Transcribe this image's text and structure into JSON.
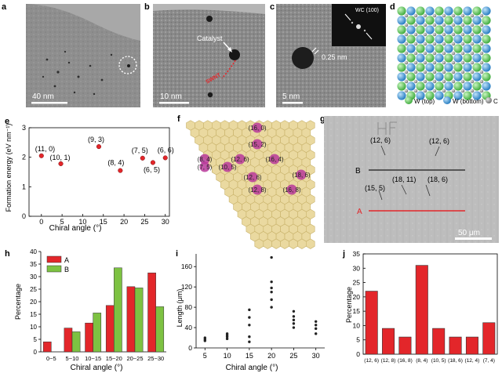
{
  "panel_letters": {
    "a": "a",
    "b": "b",
    "c": "c",
    "d": "d",
    "e": "e",
    "f": "f",
    "g": "g",
    "h": "h",
    "i": "i",
    "j": "j"
  },
  "panel_a": {
    "scale_label": "40 nm"
  },
  "panel_b": {
    "catalyst_label": "Catalyst",
    "swnt_label": "SWNT",
    "scale_label": "10 nm"
  },
  "panel_c": {
    "inset_label": "WC (100)",
    "spacing_label": "0.25 nm",
    "scale_label": "5 nm"
  },
  "panel_d": {
    "legend": [
      {
        "label": "W (top)",
        "color": "#4cc24c"
      },
      {
        "label": "W (bottom)",
        "color": "#2f8fd1"
      },
      {
        "label": "C",
        "color": "#8a8a8a"
      }
    ]
  },
  "panel_f": {
    "labels": [
      "(16, 0)",
      "(15, 2)",
      "(8, 4)",
      "(7, 5)",
      "(12, 6)",
      "(10, 5)",
      "(16, 4)",
      "(12, 6)",
      "(18, 6)",
      "(12, 8)",
      "(16, 8)"
    ],
    "hex_color": "#ead9a0",
    "highlight_color": "#b8389a"
  },
  "panel_g": {
    "labels": [
      "(12, 6)",
      "(12, 6)",
      "(18, 11)",
      "(18, 6)",
      "(15, 5)"
    ],
    "line_a_label": "A",
    "line_b_label": "B",
    "scale_label": "50 μm",
    "line_a_color": "#e3262a"
  },
  "chart_data": [
    {
      "panel": "e",
      "type": "scatter",
      "xlabel": "Chiral angle (°)",
      "ylabel": "Formation energy (eV nm⁻¹)",
      "xlim": [
        -3,
        31
      ],
      "ylim": [
        0,
        3
      ],
      "xticks": [
        0,
        5,
        10,
        15,
        20,
        25,
        30
      ],
      "yticks": [
        0,
        1,
        2,
        3
      ],
      "grid": false,
      "marker_color": "#e3262a",
      "points": [
        {
          "label": "(11, 0)",
          "x": 0,
          "y": 2.05
        },
        {
          "label": "(10, 1)",
          "x": 4.7,
          "y": 1.78
        },
        {
          "label": "(9, 3)",
          "x": 13.9,
          "y": 2.36
        },
        {
          "label": "(8, 4)",
          "x": 19.1,
          "y": 1.55
        },
        {
          "label": "(7, 5)",
          "x": 24.5,
          "y": 1.97
        },
        {
          "label": "(6, 5)",
          "x": 27,
          "y": 1.82
        },
        {
          "label": "(6, 6)",
          "x": 30,
          "y": 1.98
        }
      ]
    },
    {
      "panel": "h",
      "type": "bar",
      "xlabel": "Chiral angle (°)",
      "ylabel": "Percentage",
      "ylim": [
        0,
        40
      ],
      "yticks": [
        0,
        5,
        10,
        15,
        20,
        25,
        30,
        35,
        40
      ],
      "legend_position": "top-left",
      "categories": [
        "0~5",
        "5~10",
        "10~15",
        "15~20",
        "20~25",
        "25~30"
      ],
      "series": [
        {
          "name": "A",
          "color": "#e3262a",
          "values": [
            4,
            9.5,
            11.5,
            18.5,
            26,
            31.5
          ]
        },
        {
          "name": "B",
          "color": "#7dc242",
          "values": [
            0,
            8,
            15.5,
            33.5,
            25.5,
            18
          ]
        }
      ]
    },
    {
      "panel": "i",
      "type": "scatter",
      "xlabel": "Chiral angle (°)",
      "ylabel": "Length (μm)",
      "xlim": [
        3,
        32
      ],
      "ylim": [
        0,
        185
      ],
      "xticks": [
        5,
        10,
        15,
        20,
        25,
        30
      ],
      "yticks": [
        0,
        40,
        80,
        120,
        160
      ],
      "marker_color": "#222222",
      "points": [
        {
          "x": 5,
          "y": 14
        },
        {
          "x": 5,
          "y": 17
        },
        {
          "x": 5,
          "y": 20
        },
        {
          "x": 10,
          "y": 18
        },
        {
          "x": 10,
          "y": 22
        },
        {
          "x": 10,
          "y": 25
        },
        {
          "x": 10,
          "y": 28
        },
        {
          "x": 15,
          "y": 12
        },
        {
          "x": 15,
          "y": 22
        },
        {
          "x": 15,
          "y": 45
        },
        {
          "x": 15,
          "y": 60
        },
        {
          "x": 15,
          "y": 75
        },
        {
          "x": 20,
          "y": 80
        },
        {
          "x": 20,
          "y": 95
        },
        {
          "x": 20,
          "y": 110
        },
        {
          "x": 20,
          "y": 118
        },
        {
          "x": 20,
          "y": 130
        },
        {
          "x": 20,
          "y": 178
        },
        {
          "x": 25,
          "y": 40
        },
        {
          "x": 25,
          "y": 48
        },
        {
          "x": 25,
          "y": 55
        },
        {
          "x": 25,
          "y": 62
        },
        {
          "x": 25,
          "y": 72
        },
        {
          "x": 30,
          "y": 28
        },
        {
          "x": 30,
          "y": 38
        },
        {
          "x": 30,
          "y": 45
        },
        {
          "x": 30,
          "y": 52
        }
      ]
    },
    {
      "panel": "j",
      "type": "bar",
      "xlabel": "",
      "ylabel": "Percentage",
      "ylim": [
        0,
        35
      ],
      "yticks": [
        0,
        5,
        10,
        15,
        20,
        25,
        30,
        35
      ],
      "bar_color": "#e3262a",
      "categories": [
        "(12, 6)",
        "(12, 8)",
        "(16, 8)",
        "(8, 4)",
        "(10, 5)",
        "(18, 6)",
        "(12, 4)",
        "(7, 4)"
      ],
      "values": [
        22,
        9,
        6,
        31,
        9,
        6,
        6,
        11
      ]
    }
  ]
}
